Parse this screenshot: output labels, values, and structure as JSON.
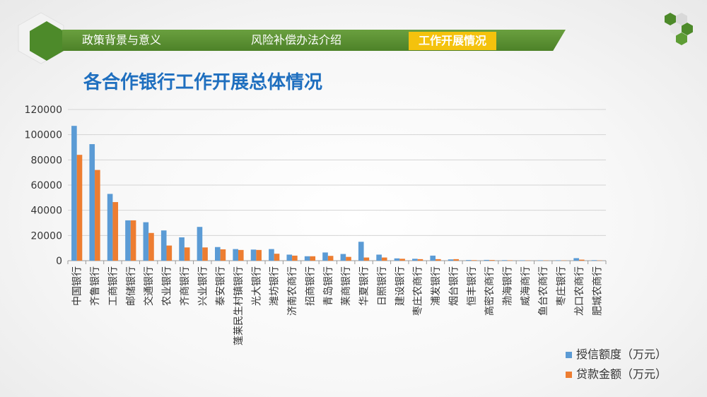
{
  "nav": {
    "tabs": [
      "政策背景与意义",
      "风险补偿办法介绍"
    ],
    "active_tab": "工作开展情况"
  },
  "page_title": "各合作银行工作开展总体情况",
  "colors": {
    "series1": "#5b9bd5",
    "series2": "#ed7d31",
    "nav_green": "#5a8f32",
    "active_tab": "#f4c20d",
    "title_blue": "#1f6fbf"
  },
  "chart_data": {
    "type": "bar",
    "categories": [
      "中国银行",
      "齐鲁银行",
      "工商银行",
      "邮储银行",
      "交通银行",
      "农业银行",
      "齐商银行",
      "兴业银行",
      "泰安银行",
      "蓬莱民生村镇银行",
      "光大银行",
      "潍坊银行",
      "济南农商行",
      "招商银行",
      "青岛银行",
      "莱商银行",
      "华夏银行",
      "日照银行",
      "建设银行",
      "枣庄农商行",
      "浦发银行",
      "烟台银行",
      "恒丰银行",
      "高密农商行",
      "渤海银行",
      "威海商行",
      "鱼台农商行",
      "枣庄银行",
      "龙口农商行",
      "肥城农商行"
    ],
    "series": [
      {
        "name": "授信额度（万元）",
        "values": [
          107000,
          92500,
          53000,
          32000,
          30500,
          24000,
          18500,
          26800,
          10800,
          9200,
          8800,
          9200,
          4800,
          3500,
          6500,
          5300,
          15000,
          4800,
          1800,
          1500,
          4000,
          1000,
          500,
          600,
          400,
          300,
          300,
          300,
          2000,
          400
        ]
      },
      {
        "name": "贷款金额（万元）",
        "values": [
          84000,
          72000,
          46500,
          32000,
          22000,
          12000,
          10500,
          10500,
          9000,
          8500,
          8500,
          5500,
          4000,
          3500,
          3800,
          3000,
          2500,
          2500,
          1500,
          1200,
          1200,
          1200,
          400,
          500,
          300,
          200,
          200,
          200,
          800,
          200
        ]
      }
    ],
    "ylim": [
      0,
      120000
    ],
    "yticks": [
      0,
      20000,
      40000,
      60000,
      80000,
      100000,
      120000
    ],
    "grid": true,
    "legend": "bottom-right"
  }
}
